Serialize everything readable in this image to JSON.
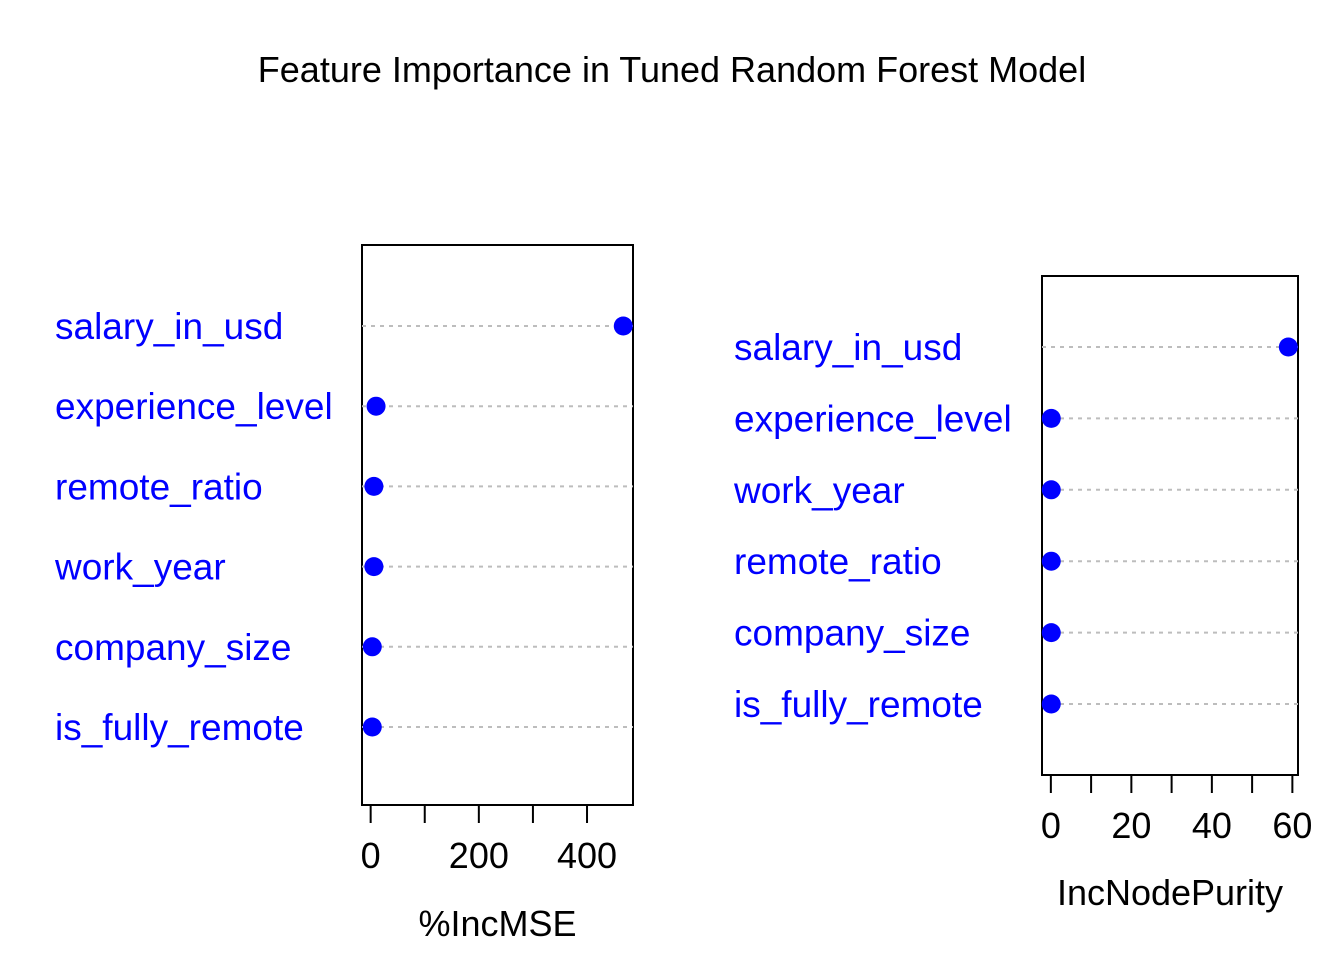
{
  "title": "Feature Importance in Tuned Random Forest Model",
  "colors": {
    "points": "#0000ff",
    "labels": "#0000ff",
    "guides": "#bdbdbd"
  },
  "chart_data": [
    {
      "type": "scatter",
      "style": "dotchart",
      "xlabel": "%IncMSE",
      "xlim": [
        -16,
        485
      ],
      "xticks": [
        0,
        100,
        200,
        300,
        400
      ],
      "xtick_labels": [
        "0",
        "",
        "200",
        "",
        "400"
      ],
      "categories": [
        "salary_in_usd",
        "experience_level",
        "remote_ratio",
        "work_year",
        "company_size",
        "is_fully_remote"
      ],
      "values": [
        467,
        10,
        6,
        6,
        3,
        3
      ]
    },
    {
      "type": "scatter",
      "style": "dotchart",
      "xlabel": "IncNodePurity",
      "xlim": [
        -2.2,
        61.4
      ],
      "xticks": [
        0,
        10,
        20,
        30,
        40,
        50,
        60
      ],
      "xtick_labels": [
        "0",
        "",
        "20",
        "",
        "40",
        "",
        "60"
      ],
      "categories": [
        "salary_in_usd",
        "experience_level",
        "work_year",
        "remote_ratio",
        "company_size",
        "is_fully_remote"
      ],
      "values": [
        59.0,
        0.1,
        0.1,
        0.1,
        0.1,
        0.1
      ]
    }
  ]
}
